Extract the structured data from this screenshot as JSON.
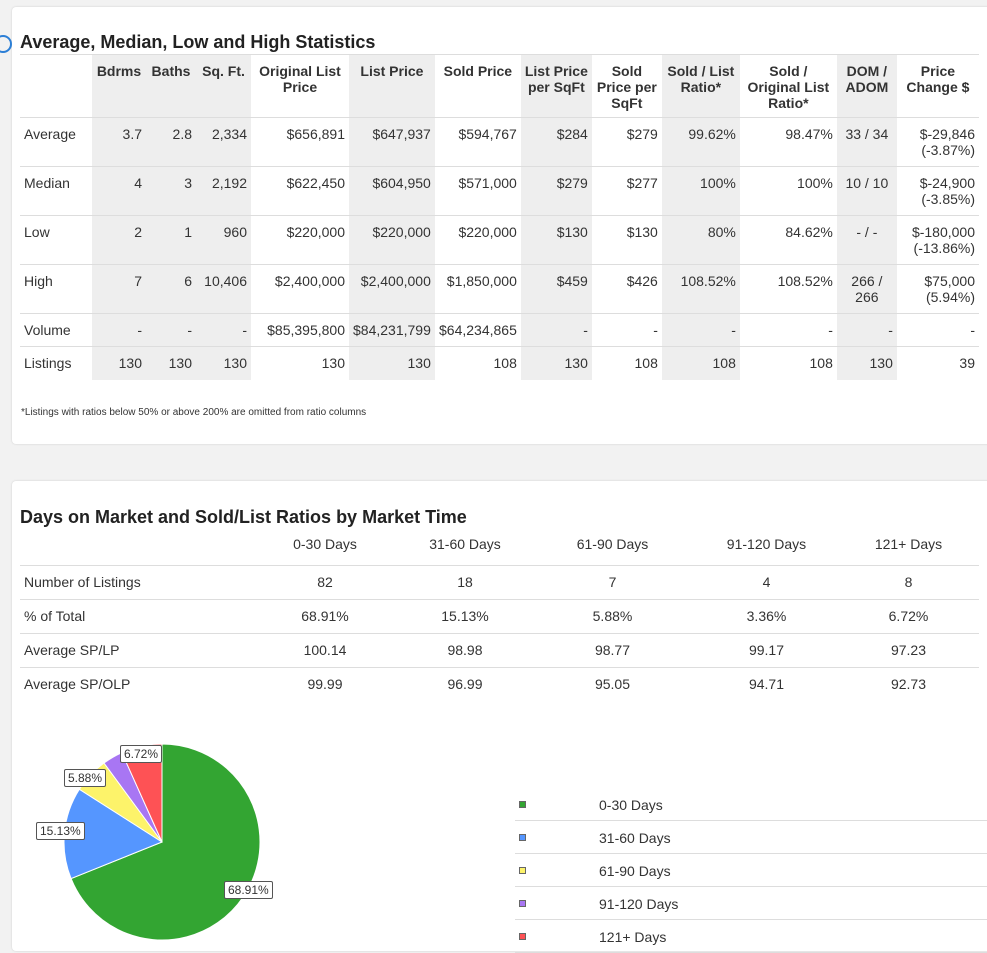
{
  "stats": {
    "title": "Average, Median, Low and High Statistics",
    "headers": [
      "",
      "Bdrms",
      "Baths",
      "Sq. Ft.",
      "Original List Price",
      "List Price",
      "Sold Price",
      "List Price per SqFt",
      "Sold Price per SqFt",
      "Sold / List Ratio*",
      "Sold / Original List Ratio*",
      "DOM / ADOM",
      "Price Change $"
    ],
    "rows": [
      [
        "Average",
        "3.7",
        "2.8",
        "2,334",
        "$656,891",
        "$647,937",
        "$594,767",
        "$284",
        "$279",
        "99.62%",
        "98.47%",
        "33 / 34",
        "$-29,846 (-3.87%)"
      ],
      [
        "Median",
        "4",
        "3",
        "2,192",
        "$622,450",
        "$604,950",
        "$571,000",
        "$279",
        "$277",
        "100%",
        "100%",
        "10 / 10",
        "$-24,900 (-3.85%)"
      ],
      [
        "Low",
        "2",
        "1",
        "960",
        "$220,000",
        "$220,000",
        "$220,000",
        "$130",
        "$130",
        "80%",
        "84.62%",
        "- / -",
        "$-180,000 (-13.86%)"
      ],
      [
        "High",
        "7",
        "6",
        "10,406",
        "$2,400,000",
        "$2,400,000",
        "$1,850,000",
        "$459",
        "$426",
        "108.52%",
        "108.52%",
        "266 / 266",
        "$75,000 (5.94%)"
      ],
      [
        "Volume",
        "-",
        "-",
        "-",
        "$85,395,800",
        "$84,231,799",
        "$64,234,865",
        "-",
        "-",
        "-",
        "-",
        "-",
        "-"
      ],
      [
        "Listings",
        "130",
        "130",
        "130",
        "130",
        "130",
        "108",
        "130",
        "108",
        "108",
        "108",
        "130",
        "39"
      ]
    ],
    "footnote": "*Listings with ratios below 50% or above 200% are omitted from ratio columns"
  },
  "dom": {
    "title": "Days on Market and Sold/List Ratios by Market Time",
    "headers": [
      "",
      "0-30 Days",
      "31-60 Days",
      "61-90 Days",
      "91-120 Days",
      "121+ Days"
    ],
    "rows": [
      [
        "Number of Listings",
        "82",
        "18",
        "7",
        "4",
        "8"
      ],
      [
        "% of Total",
        "68.91%",
        "15.13%",
        "5.88%",
        "3.36%",
        "6.72%"
      ],
      [
        "Average SP/LP",
        "100.14",
        "98.98",
        "98.77",
        "99.17",
        "97.23"
      ],
      [
        "Average SP/OLP",
        "99.99",
        "96.99",
        "95.05",
        "94.71",
        "92.73"
      ]
    ]
  },
  "chart_data": {
    "type": "pie",
    "categories": [
      "0-30 Days",
      "31-60 Days",
      "61-90 Days",
      "91-120 Days",
      "121+ Days"
    ],
    "values": [
      68.91,
      15.13,
      5.88,
      3.36,
      6.72
    ],
    "labels": [
      "68.91%",
      "15.13%",
      "5.88%",
      "",
      "6.72%"
    ],
    "colors": [
      "#33a532",
      "#5596ff",
      "#fdf36a",
      "#a876f3",
      "#fe5255"
    ],
    "legend": "right"
  }
}
